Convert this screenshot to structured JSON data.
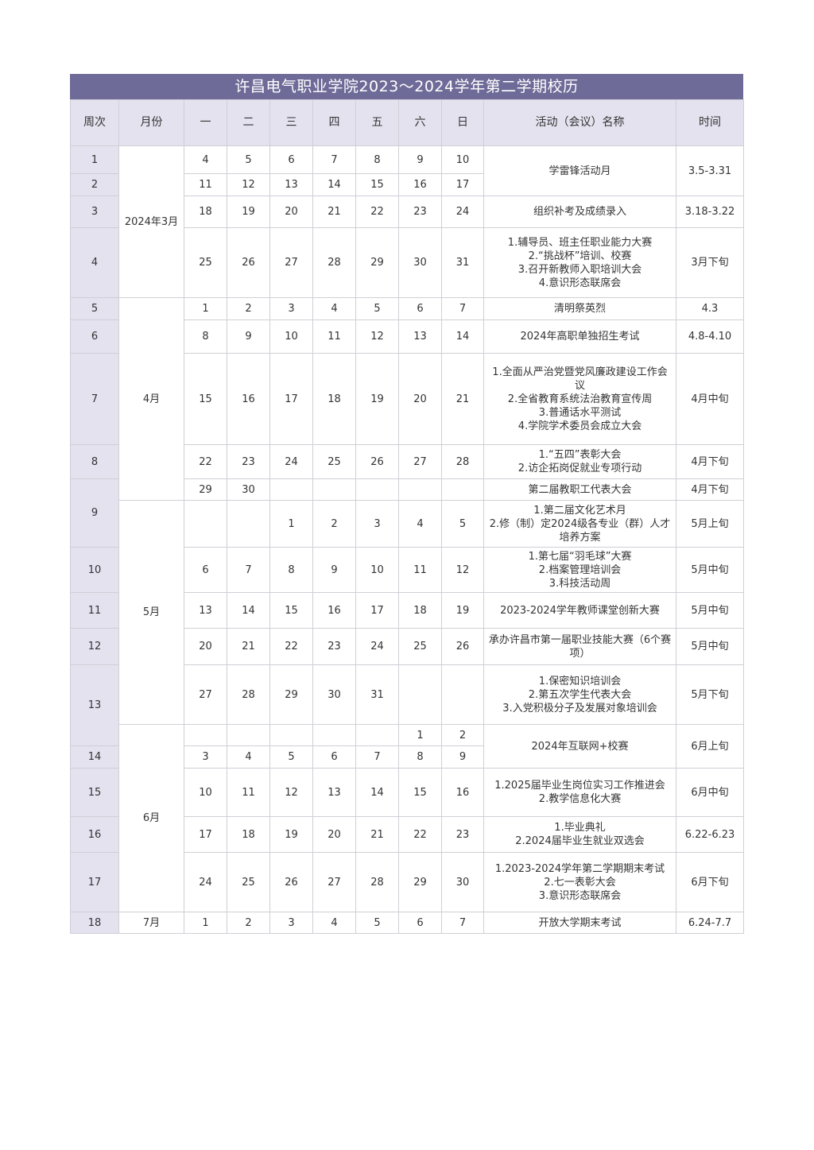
{
  "title": "许昌电气职业学院2023～2024学年第二学期校历",
  "colors": {
    "title_bg": "#6f6b98",
    "header_bg": "#e4e2ef",
    "border": "#cfcfd6"
  },
  "headers": [
    "周次",
    "月份",
    "一",
    "二",
    "三",
    "四",
    "五",
    "六",
    "日",
    "活动（会议）名称",
    "时间"
  ],
  "weeks": [
    "1",
    "2",
    "3",
    "4",
    "5",
    "6",
    "7",
    "8",
    "9",
    "10",
    "11",
    "12",
    "13",
    "14",
    "15",
    "16",
    "17",
    "18"
  ],
  "months": [
    "2024年3月",
    "4月",
    "5月",
    "6月",
    "7月"
  ],
  "day_rows": [
    [
      "4",
      "5",
      "6",
      "7",
      "8",
      "9",
      "10"
    ],
    [
      "11",
      "12",
      "13",
      "14",
      "15",
      "16",
      "17"
    ],
    [
      "18",
      "19",
      "20",
      "21",
      "22",
      "23",
      "24"
    ],
    [
      "25",
      "26",
      "27",
      "28",
      "29",
      "30",
      "31"
    ],
    [
      "1",
      "2",
      "3",
      "4",
      "5",
      "6",
      "7"
    ],
    [
      "8",
      "9",
      "10",
      "11",
      "12",
      "13",
      "14"
    ],
    [
      "15",
      "16",
      "17",
      "18",
      "19",
      "20",
      "21"
    ],
    [
      "22",
      "23",
      "24",
      "25",
      "26",
      "27",
      "28"
    ],
    [
      "29",
      "30",
      "",
      "",
      "",
      "",
      ""
    ],
    [
      "",
      "",
      "1",
      "2",
      "3",
      "4",
      "5"
    ],
    [
      "6",
      "7",
      "8",
      "9",
      "10",
      "11",
      "12"
    ],
    [
      "13",
      "14",
      "15",
      "16",
      "17",
      "18",
      "19"
    ],
    [
      "20",
      "21",
      "22",
      "23",
      "24",
      "25",
      "26"
    ],
    [
      "27",
      "28",
      "29",
      "30",
      "31",
      "",
      ""
    ],
    [
      "",
      "",
      "",
      "",
      "",
      "1",
      "2"
    ],
    [
      "3",
      "4",
      "5",
      "6",
      "7",
      "8",
      "9"
    ],
    [
      "10",
      "11",
      "12",
      "13",
      "14",
      "15",
      "16"
    ],
    [
      "17",
      "18",
      "19",
      "20",
      "21",
      "22",
      "23"
    ],
    [
      "24",
      "25",
      "26",
      "27",
      "28",
      "29",
      "30"
    ],
    [
      "1",
      "2",
      "3",
      "4",
      "5",
      "6",
      "7"
    ]
  ],
  "activities": [
    {
      "lines": [
        "学雷锋活动月"
      ],
      "time": "3.5-3.31"
    },
    {
      "lines": [
        "组织补考及成绩录入"
      ],
      "time": "3.18-3.22"
    },
    {
      "lines": [
        "1.辅导员、班主任职业能力大赛",
        "2.“挑战杯”培训、校赛",
        "3.召开新教师入职培训大会",
        "4.意识形态联席会"
      ],
      "time": "3月下旬"
    },
    {
      "lines": [
        "清明祭英烈"
      ],
      "time": "4.3"
    },
    {
      "lines": [
        "2024年高职单独招生考试"
      ],
      "time": "4.8-4.10"
    },
    {
      "lines": [
        "1.全面从严治党暨党风廉政建设工作会议",
        "2.全省教育系统法治教育宣传周",
        "3.普通话水平测试",
        "4.学院学术委员会成立大会"
      ],
      "time": "4月中旬"
    },
    {
      "lines": [
        "1.“五四”表彰大会",
        "2.访企拓岗促就业专项行动"
      ],
      "time": "4月下旬"
    },
    {
      "lines": [
        "第二届教职工代表大会"
      ],
      "time": "4月下旬"
    },
    {
      "lines": [
        "1.第二届文化艺术月",
        "2.修（制）定2024级各专业（群）人才培养方案"
      ],
      "time": "5月上旬"
    },
    {
      "lines": [
        "1.第七届“羽毛球”大赛",
        "2.档案管理培训会",
        "3.科技活动周"
      ],
      "time": "5月中旬"
    },
    {
      "lines": [
        "2023-2024学年教师课堂创新大赛"
      ],
      "time": "5月中旬"
    },
    {
      "lines": [
        "承办许昌市第一届职业技能大赛（6个赛项）"
      ],
      "time": "5月中旬"
    },
    {
      "lines": [
        "1.保密知识培训会",
        "2.第五次学生代表大会",
        "3.入党积极分子及发展对象培训会"
      ],
      "time": "5月下旬"
    },
    {
      "lines": [
        "2024年互联网+校赛"
      ],
      "time": "6月上旬"
    },
    {
      "lines": [
        "1.2025届毕业生岗位实习工作推进会",
        "2.教学信息化大赛"
      ],
      "time": "6月中旬"
    },
    {
      "lines": [
        "1.毕业典礼",
        "2.2024届毕业生就业双选会"
      ],
      "time": "6.22-6.23"
    },
    {
      "lines": [
        "1.2023-2024学年第二学期期末考试",
        "2.七一表彰大会",
        "3.意识形态联席会"
      ],
      "time": "6月下旬"
    },
    {
      "lines": [
        "开放大学期末考试"
      ],
      "time": "6.24-7.7"
    }
  ]
}
